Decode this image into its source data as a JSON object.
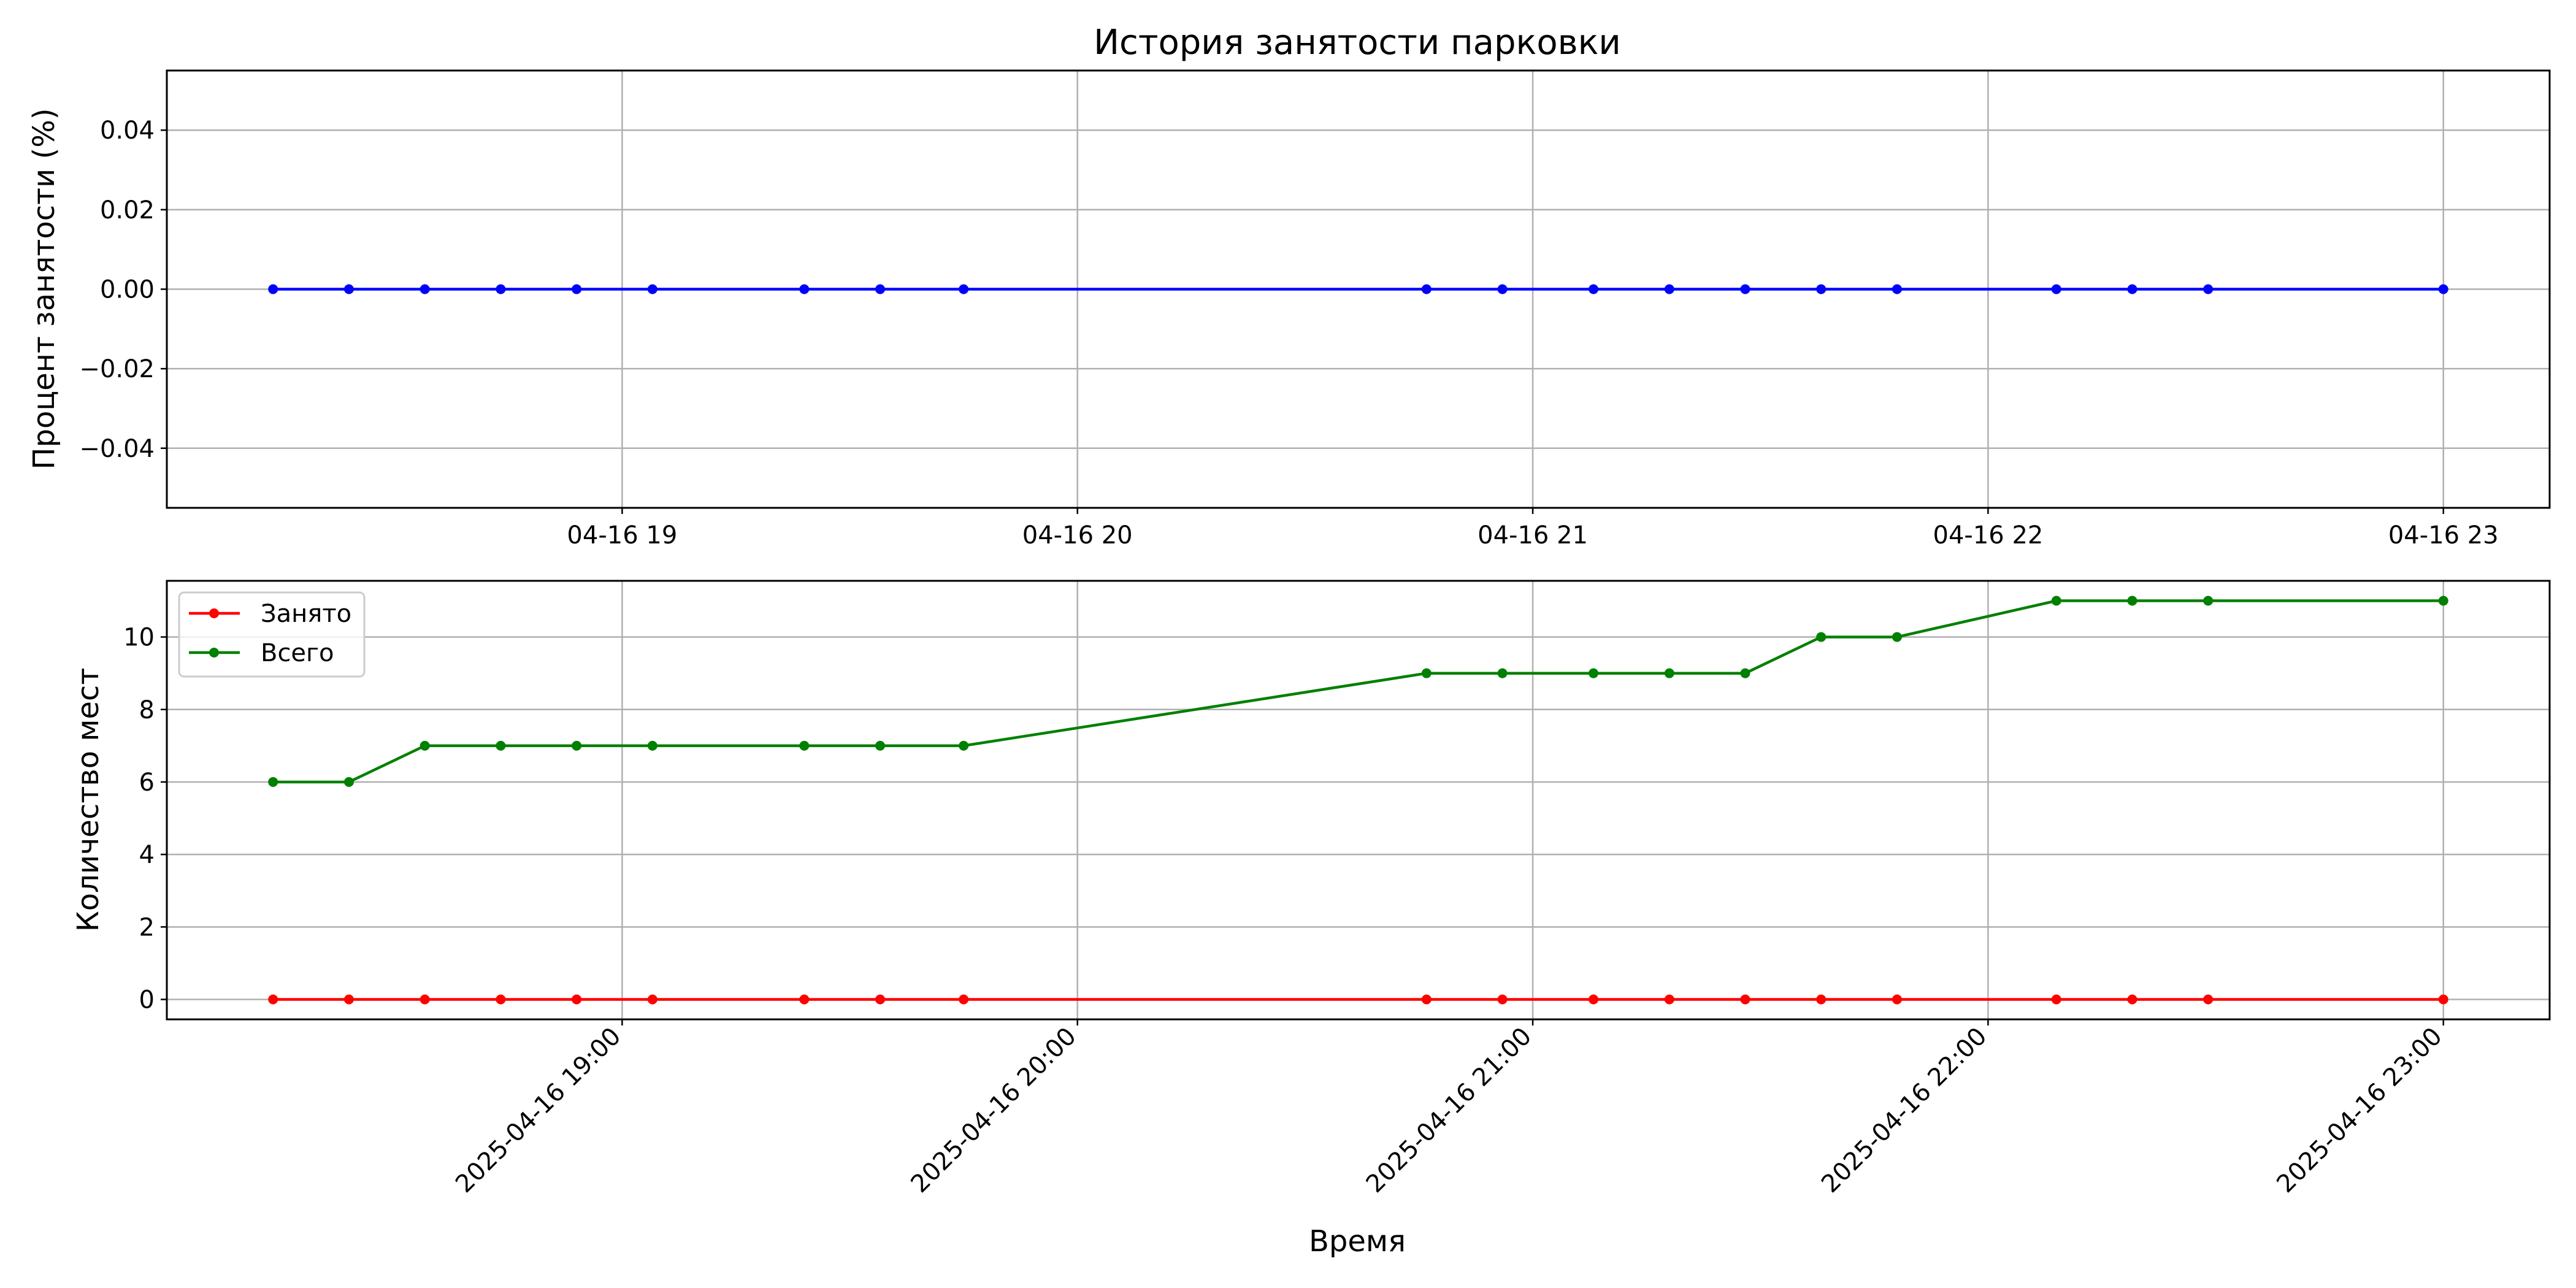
{
  "figure_title": "История занятости парковки",
  "x_tick_labels_top": [
    "04-16 19",
    "04-16 20",
    "04-16 21",
    "04-16 22",
    "04-16 23"
  ],
  "x_tick_labels_bottom": [
    "2025-04-16 19:00",
    "2025-04-16 20:00",
    "2025-04-16 21:00",
    "2025-04-16 22:00",
    "2025-04-16 23:00"
  ],
  "chart_data": [
    {
      "type": "line",
      "title": "История занятости парковки",
      "xlabel": "",
      "ylabel": "Процент занятости (%)",
      "x": [
        "2025-04-16 18:14",
        "2025-04-16 18:24",
        "2025-04-16 18:34",
        "2025-04-16 18:44",
        "2025-04-16 18:54",
        "2025-04-16 19:04",
        "2025-04-16 19:24",
        "2025-04-16 19:34",
        "2025-04-16 19:45",
        "2025-04-16 20:46",
        "2025-04-16 20:56",
        "2025-04-16 21:08",
        "2025-04-16 21:18",
        "2025-04-16 21:28",
        "2025-04-16 21:38",
        "2025-04-16 21:48",
        "2025-04-16 22:09",
        "2025-04-16 22:19",
        "2025-04-16 22:29",
        "2025-04-16 23:00"
      ],
      "series": [
        {
          "name": "",
          "color": "#0000ff",
          "values": [
            0,
            0,
            0,
            0,
            0,
            0,
            0,
            0,
            0,
            0,
            0,
            0,
            0,
            0,
            0,
            0,
            0,
            0,
            0,
            0
          ]
        }
      ],
      "xlim": [
        "2025-04-16 18:00",
        "2025-04-16 23:14"
      ],
      "ylim": [
        -0.055,
        0.055
      ],
      "yticks": [
        -0.04,
        -0.02,
        0.0,
        0.02,
        0.04
      ],
      "ytick_labels": [
        "−0.04",
        "−0.02",
        "0.00",
        "0.02",
        "0.04"
      ],
      "grid": true,
      "legend": "none"
    },
    {
      "type": "line",
      "title": "",
      "xlabel": "Время",
      "ylabel": "Количество мест",
      "x": [
        "2025-04-16 18:14",
        "2025-04-16 18:24",
        "2025-04-16 18:34",
        "2025-04-16 18:44",
        "2025-04-16 18:54",
        "2025-04-16 19:04",
        "2025-04-16 19:24",
        "2025-04-16 19:34",
        "2025-04-16 19:45",
        "2025-04-16 20:46",
        "2025-04-16 20:56",
        "2025-04-16 21:08",
        "2025-04-16 21:18",
        "2025-04-16 21:28",
        "2025-04-16 21:38",
        "2025-04-16 21:48",
        "2025-04-16 22:09",
        "2025-04-16 22:19",
        "2025-04-16 22:29",
        "2025-04-16 23:00"
      ],
      "series": [
        {
          "name": "Занято",
          "color": "#ff0000",
          "values": [
            0,
            0,
            0,
            0,
            0,
            0,
            0,
            0,
            0,
            0,
            0,
            0,
            0,
            0,
            0,
            0,
            0,
            0,
            0,
            0
          ]
        },
        {
          "name": "Всего",
          "color": "#008000",
          "values": [
            6,
            6,
            7,
            7,
            7,
            7,
            7,
            7,
            7,
            9,
            9,
            9,
            9,
            9,
            10,
            10,
            11,
            11,
            11,
            11
          ]
        }
      ],
      "xlim": [
        "2025-04-16 18:00",
        "2025-04-16 23:14"
      ],
      "ylim": [
        -0.55,
        11.55
      ],
      "yticks": [
        0,
        2,
        4,
        6,
        8,
        10
      ],
      "ytick_labels": [
        "0",
        "2",
        "4",
        "6",
        "8",
        "10"
      ],
      "grid": true,
      "legend": "upper-left"
    }
  ]
}
